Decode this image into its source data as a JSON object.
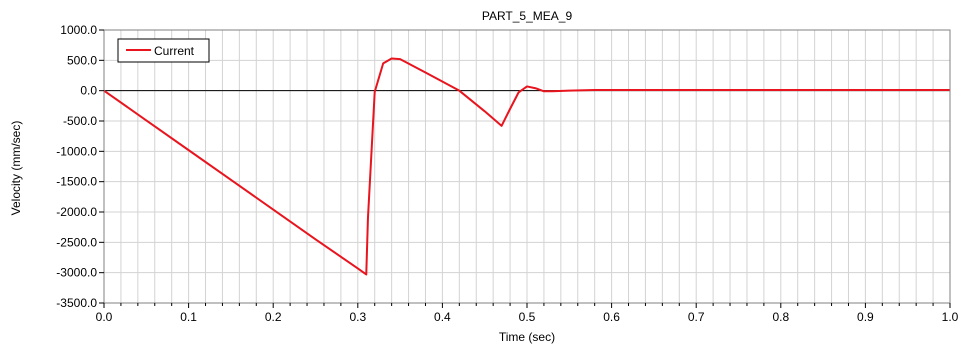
{
  "chart_data": {
    "type": "line",
    "title": "PART_5_MEA_9",
    "xlabel": "Time (sec)",
    "ylabel": "Velocity (mm/sec)",
    "xlim": [
      0.0,
      1.0
    ],
    "ylim": [
      -3500.0,
      1000.0
    ],
    "x_major_ticks": [
      0.0,
      0.1,
      0.2,
      0.3,
      0.4,
      0.5,
      0.6,
      0.7,
      0.8,
      0.9,
      1.0
    ],
    "x_tick_labels": [
      "0.0",
      "0.1",
      "0.2",
      "0.3",
      "0.4",
      "0.5",
      "0.6",
      "0.7",
      "0.8",
      "0.9",
      "1.0"
    ],
    "x_minor_step": 0.02,
    "y_major_ticks": [
      1000.0,
      500.0,
      0.0,
      -500.0,
      -1000.0,
      -1500.0,
      -2000.0,
      -2500.0,
      -3000.0,
      -3500.0
    ],
    "y_tick_labels": [
      "1000.0",
      "500.0",
      "0.0",
      "-500.0",
      "-1000.0",
      "-1500.0",
      "-2000.0",
      "-2500.0",
      "-3000.0",
      "-3500.0"
    ],
    "grid": true,
    "zero_line": true,
    "legend_position": "top-left",
    "series": [
      {
        "name": "Current",
        "color": "#e8141e",
        "x": [
          0.0,
          0.05,
          0.1,
          0.15,
          0.2,
          0.25,
          0.3,
          0.31,
          0.312,
          0.32,
          0.33,
          0.34,
          0.35,
          0.38,
          0.42,
          0.45,
          0.47,
          0.48,
          0.49,
          0.5,
          0.51,
          0.52,
          0.53,
          0.55,
          0.58,
          0.6,
          0.7,
          0.8,
          0.9,
          1.0
        ],
        "y": [
          0,
          -490,
          -980,
          -1470,
          -1960,
          -2450,
          -2930,
          -3030,
          -2100,
          -20,
          450,
          530,
          520,
          300,
          0,
          -340,
          -580,
          -300,
          -30,
          70,
          40,
          -10,
          -10,
          0,
          10,
          10,
          10,
          10,
          10,
          10
        ]
      }
    ]
  }
}
